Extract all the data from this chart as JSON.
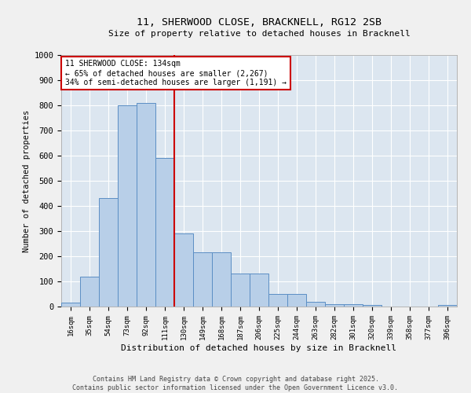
{
  "title_line1": "11, SHERWOOD CLOSE, BRACKNELL, RG12 2SB",
  "title_line2": "Size of property relative to detached houses in Bracknell",
  "xlabel": "Distribution of detached houses by size in Bracknell",
  "ylabel": "Number of detached properties",
  "categories": [
    "16sqm",
    "35sqm",
    "54sqm",
    "73sqm",
    "92sqm",
    "111sqm",
    "130sqm",
    "149sqm",
    "168sqm",
    "187sqm",
    "206sqm",
    "225sqm",
    "244sqm",
    "263sqm",
    "282sqm",
    "301sqm",
    "320sqm",
    "339sqm",
    "358sqm",
    "377sqm",
    "396sqm"
  ],
  "values": [
    15,
    120,
    430,
    800,
    810,
    590,
    290,
    215,
    215,
    130,
    130,
    50,
    50,
    20,
    10,
    10,
    5,
    0,
    0,
    0,
    5
  ],
  "bar_color": "#b8cfe8",
  "bar_edge_color": "#5b8ec4",
  "bar_width": 1.0,
  "vline_color": "#cc0000",
  "annotation_text": "11 SHERWOOD CLOSE: 134sqm\n← 65% of detached houses are smaller (2,267)\n34% of semi-detached houses are larger (1,191) →",
  "annotation_box_color": "#ffffff",
  "annotation_box_edge_color": "#cc0000",
  "ylim": [
    0,
    1000
  ],
  "yticks": [
    0,
    100,
    200,
    300,
    400,
    500,
    600,
    700,
    800,
    900,
    1000
  ],
  "background_color": "#dce6f0",
  "grid_color": "#ffffff",
  "fig_bg_color": "#f0f0f0",
  "footer": "Contains HM Land Registry data © Crown copyright and database right 2025.\nContains public sector information licensed under the Open Government Licence v3.0."
}
